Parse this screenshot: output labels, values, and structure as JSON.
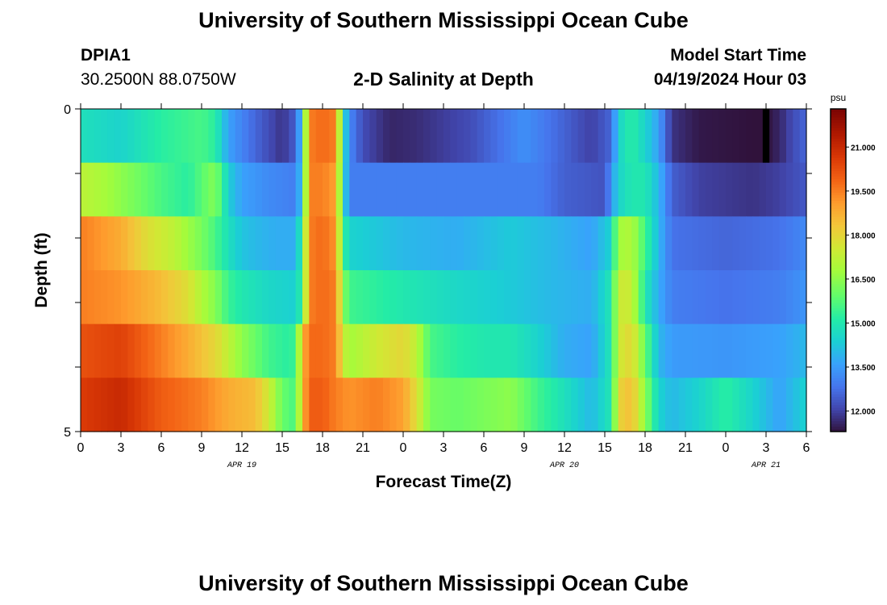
{
  "header": {
    "title": "University of Southern Mississippi Ocean Cube",
    "station": "DPIA1",
    "coordinates": "30.2500N  88.0750W",
    "plot_title": "2-D Salinity at Depth",
    "model_start_label": "Model Start Time",
    "model_start_value": "04/19/2024 Hour 03"
  },
  "footer": {
    "title": "University of Southern Mississippi Ocean Cube"
  },
  "chart_data": {
    "type": "heatmap",
    "title": "2-D Salinity at Depth",
    "xlabel": "Forecast Time(Z)",
    "ylabel": "Depth (ft)",
    "x_tick_labels": [
      "0",
      "3",
      "6",
      "9",
      "12",
      "15",
      "18",
      "21",
      "0",
      "3",
      "6",
      "9",
      "12",
      "15",
      "18",
      "21",
      "0",
      "3",
      "6"
    ],
    "x_hours_range": [
      0,
      54
    ],
    "date_labels": [
      {
        "label": "APR 19",
        "hour": 12
      },
      {
        "label": "APR 20",
        "hour": 36
      },
      {
        "label": "APR 21",
        "hour": 51
      }
    ],
    "y_tick_labels": [
      "0",
      "5"
    ],
    "ylim": [
      0,
      5
    ],
    "colorbar": {
      "unit": "psu",
      "min": 11.3,
      "max": 22.3,
      "tick_values": [
        12.0,
        13.5,
        15.0,
        16.5,
        18.0,
        19.5,
        21.0
      ],
      "tick_labels": [
        "12.000",
        "13.500",
        "15.000",
        "16.500",
        "18.000",
        "19.500",
        "21.000"
      ],
      "colormap": "turbo"
    },
    "depth_layers": [
      0,
      1,
      2,
      3,
      4,
      5
    ],
    "salinity_keyframes_by_layer": [
      [
        [
          0,
          14.8
        ],
        [
          3,
          14.5
        ],
        [
          6,
          15.2
        ],
        [
          9,
          15.6
        ],
        [
          10,
          15.2
        ],
        [
          11,
          13.6
        ],
        [
          13,
          12.6
        ],
        [
          15,
          11.8
        ],
        [
          16,
          12.5
        ],
        [
          16.5,
          14.5
        ],
        [
          17,
          19.5
        ],
        [
          18,
          19.8
        ],
        [
          19,
          19.5
        ],
        [
          19.5,
          15
        ],
        [
          20,
          13.2
        ],
        [
          21,
          12.2
        ],
        [
          23,
          11.6
        ],
        [
          25,
          11.7
        ],
        [
          29,
          12.2
        ],
        [
          33,
          13.3
        ],
        [
          35,
          12.8
        ],
        [
          38,
          12.0
        ],
        [
          39.5,
          12.6
        ],
        [
          40,
          14.5
        ],
        [
          41,
          15.2
        ],
        [
          42,
          14.5
        ],
        [
          43,
          13.6
        ],
        [
          44,
          11.8
        ],
        [
          46,
          11.4
        ],
        [
          50,
          11.3
        ],
        [
          51,
          11.3
        ],
        [
          52,
          11.6
        ],
        [
          53,
          12.2
        ],
        [
          54,
          12.6
        ]
      ],
      [
        [
          0,
          17.2
        ],
        [
          2,
          16.8
        ],
        [
          4,
          16.2
        ],
        [
          6,
          15.6
        ],
        [
          8,
          15.2
        ],
        [
          10,
          16.4
        ],
        [
          10.5,
          15.4
        ],
        [
          11,
          14.4
        ],
        [
          12,
          13.6
        ],
        [
          14,
          13.2
        ],
        [
          16,
          13.0
        ],
        [
          16.5,
          14.5
        ],
        [
          17,
          19.5
        ],
        [
          18,
          19.5
        ],
        [
          19,
          19.0
        ],
        [
          19.5,
          15
        ],
        [
          20,
          13.0
        ],
        [
          22,
          13.0
        ],
        [
          30,
          13.0
        ],
        [
          34,
          13.0
        ],
        [
          36,
          12.5
        ],
        [
          39,
          12.3
        ],
        [
          40,
          14.5
        ],
        [
          41,
          15.0
        ],
        [
          42,
          15.0
        ],
        [
          43,
          14
        ],
        [
          44,
          12.5
        ],
        [
          46,
          12.0
        ],
        [
          50,
          11.8
        ],
        [
          52,
          12.0
        ],
        [
          54,
          12.4
        ]
      ],
      [
        [
          0,
          19.5
        ],
        [
          3,
          18.8
        ],
        [
          5,
          17.8
        ],
        [
          7,
          17.2
        ],
        [
          9,
          16.2
        ],
        [
          10,
          15.6
        ],
        [
          11,
          14.8
        ],
        [
          12,
          14.2
        ],
        [
          13,
          14.0
        ],
        [
          14.5,
          13.8
        ],
        [
          16,
          13.8
        ],
        [
          16.5,
          15.5
        ],
        [
          17,
          19.5
        ],
        [
          18,
          19.8
        ],
        [
          19,
          19.2
        ],
        [
          19.5,
          15.5
        ],
        [
          20,
          14.5
        ],
        [
          24,
          14.0
        ],
        [
          28,
          13.8
        ],
        [
          32,
          14.3
        ],
        [
          35,
          14.0
        ],
        [
          38,
          13.6
        ],
        [
          39.5,
          14.5
        ],
        [
          40,
          16.8
        ],
        [
          41,
          17.0
        ],
        [
          42,
          15.5
        ],
        [
          43,
          14.0
        ],
        [
          44,
          12.8
        ],
        [
          48,
          12.6
        ],
        [
          52,
          12.8
        ],
        [
          54,
          13.2
        ]
      ],
      [
        [
          0,
          19.5
        ],
        [
          3,
          19.2
        ],
        [
          6,
          18.5
        ],
        [
          8,
          17.8
        ],
        [
          9,
          17.0
        ],
        [
          10,
          16.4
        ],
        [
          11,
          15.4
        ],
        [
          12,
          15.0
        ],
        [
          14,
          14.6
        ],
        [
          16,
          14.4
        ],
        [
          16.5,
          15.5
        ],
        [
          17,
          19.5
        ],
        [
          18,
          19.8
        ],
        [
          19,
          19.5
        ],
        [
          19.5,
          16.5
        ],
        [
          20,
          15.5
        ],
        [
          24,
          15.0
        ],
        [
          28,
          14.6
        ],
        [
          32,
          14.3
        ],
        [
          35,
          14.0
        ],
        [
          38,
          13.8
        ],
        [
          39.5,
          15.0
        ],
        [
          40,
          17.5
        ],
        [
          41,
          17.4
        ],
        [
          42,
          15.0
        ],
        [
          43,
          13.8
        ],
        [
          44,
          13.0
        ],
        [
          48,
          12.8
        ],
        [
          52,
          13.0
        ],
        [
          54,
          13.4
        ]
      ],
      [
        [
          0,
          20.2
        ],
        [
          3,
          20.5
        ],
        [
          6,
          19.5
        ],
        [
          8,
          18.8
        ],
        [
          10,
          18.0
        ],
        [
          12,
          16.5
        ],
        [
          14,
          15.5
        ],
        [
          15.5,
          15.2
        ],
        [
          16,
          15.5
        ],
        [
          16.5,
          18.5
        ],
        [
          17,
          19.8
        ],
        [
          18,
          19.8
        ],
        [
          19,
          19.5
        ],
        [
          19.5,
          17.5
        ],
        [
          20,
          16.8
        ],
        [
          22,
          17.5
        ],
        [
          24,
          18.0
        ],
        [
          25,
          17.2
        ],
        [
          26,
          15.6
        ],
        [
          28,
          15.2
        ],
        [
          30,
          15.0
        ],
        [
          32,
          15.0
        ],
        [
          34,
          14.5
        ],
        [
          36,
          13.8
        ],
        [
          38,
          13.6
        ],
        [
          39.5,
          15.0
        ],
        [
          40,
          17.5
        ],
        [
          41,
          18.0
        ],
        [
          42,
          16.0
        ],
        [
          43,
          14.0
        ],
        [
          44,
          13.5
        ],
        [
          48,
          13.4
        ],
        [
          52,
          13.6
        ],
        [
          54,
          14.0
        ]
      ],
      [
        [
          0,
          20.6
        ],
        [
          3,
          21.0
        ],
        [
          6,
          20.0
        ],
        [
          9,
          19.5
        ],
        [
          11,
          18.8
        ],
        [
          13,
          18.5
        ],
        [
          14,
          17.5
        ],
        [
          15,
          16.0
        ],
        [
          16,
          15.6
        ],
        [
          16.5,
          18.5
        ],
        [
          17,
          20.0
        ],
        [
          18,
          20.0
        ],
        [
          19,
          19.5
        ],
        [
          20,
          19.2
        ],
        [
          22,
          19.5
        ],
        [
          24,
          19.0
        ],
        [
          25,
          17.8
        ],
        [
          26,
          16.2
        ],
        [
          28,
          16.0
        ],
        [
          32,
          16.5
        ],
        [
          34,
          15.5
        ],
        [
          36,
          14.8
        ],
        [
          38,
          14.0
        ],
        [
          39.5,
          15.0
        ],
        [
          40,
          18.0
        ],
        [
          41,
          18.5
        ],
        [
          42,
          16.5
        ],
        [
          43,
          14.5
        ],
        [
          44,
          14.0
        ],
        [
          46,
          14.5
        ],
        [
          48,
          15.2
        ],
        [
          50,
          14.5
        ],
        [
          52,
          13.6
        ],
        [
          54,
          14.5
        ]
      ]
    ],
    "anomaly_cells": [
      {
        "hour": 51,
        "layer": 0,
        "note": "black cell"
      }
    ]
  }
}
